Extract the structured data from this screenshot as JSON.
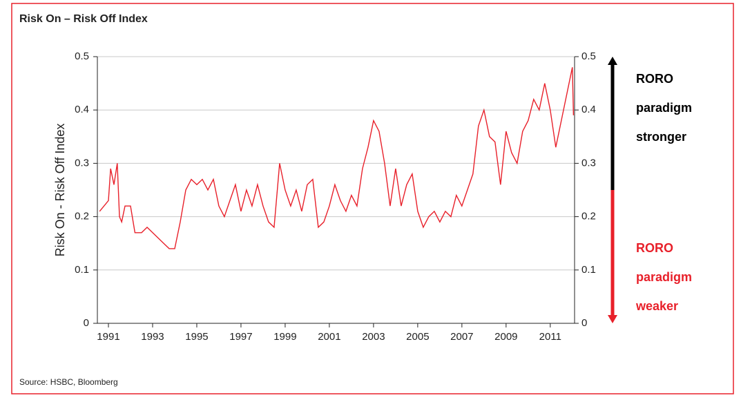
{
  "chart_data": {
    "type": "line",
    "title": "Risk On – Risk Off Index",
    "y_label": "Risk On - Risk Off Index",
    "source": "Source: HSBC, Bloomberg",
    "color": "#e8202a",
    "grid": true,
    "xlim": [
      1990.5,
      2012.1
    ],
    "xticks": [
      1991,
      1993,
      1995,
      1997,
      1999,
      2001,
      2003,
      2005,
      2007,
      2009,
      2011
    ],
    "ylim": [
      0,
      0.5
    ],
    "yticks": [
      0,
      0.1,
      0.2,
      0.3,
      0.4,
      0.5
    ],
    "y2lim": [
      0,
      0.5
    ],
    "y2ticks": [
      0,
      0.1,
      0.2,
      0.3,
      0.4,
      0.5
    ],
    "annotations": [
      {
        "text": [
          "RORO",
          "paradigm",
          "stronger"
        ],
        "color": "#000000"
      },
      {
        "text": [
          "RORO",
          "paradigm",
          "weaker"
        ],
        "color": "#e8202a"
      }
    ],
    "x": [
      1990.6,
      1990.8,
      1991.0,
      1991.1,
      1991.25,
      1991.4,
      1991.5,
      1991.6,
      1991.75,
      1992.0,
      1992.2,
      1992.5,
      1992.75,
      1993.0,
      1993.25,
      1993.5,
      1993.75,
      1994.0,
      1994.25,
      1994.5,
      1994.75,
      1995.0,
      1995.25,
      1995.5,
      1995.75,
      1996.0,
      1996.25,
      1996.5,
      1996.75,
      1997.0,
      1997.25,
      1997.5,
      1997.75,
      1998.0,
      1998.25,
      1998.5,
      1998.75,
      1999.0,
      1999.25,
      1999.5,
      1999.75,
      2000.0,
      2000.25,
      2000.5,
      2000.75,
      2001.0,
      2001.25,
      2001.5,
      2001.75,
      2002.0,
      2002.25,
      2002.5,
      2002.75,
      2003.0,
      2003.25,
      2003.5,
      2003.75,
      2004.0,
      2004.25,
      2004.5,
      2004.75,
      2005.0,
      2005.25,
      2005.5,
      2005.75,
      2006.0,
      2006.25,
      2006.5,
      2006.75,
      2007.0,
      2007.25,
      2007.5,
      2007.75,
      2008.0,
      2008.25,
      2008.5,
      2008.75,
      2009.0,
      2009.25,
      2009.5,
      2009.75,
      2010.0,
      2010.25,
      2010.5,
      2010.75,
      2011.0,
      2011.25,
      2011.5,
      2011.75,
      2012.0,
      2012.05
    ],
    "values": [
      0.21,
      0.22,
      0.23,
      0.29,
      0.26,
      0.3,
      0.2,
      0.19,
      0.22,
      0.22,
      0.17,
      0.17,
      0.18,
      0.17,
      0.16,
      0.15,
      0.14,
      0.14,
      0.19,
      0.25,
      0.27,
      0.26,
      0.27,
      0.25,
      0.27,
      0.22,
      0.2,
      0.23,
      0.26,
      0.21,
      0.25,
      0.22,
      0.26,
      0.22,
      0.19,
      0.18,
      0.3,
      0.25,
      0.22,
      0.25,
      0.21,
      0.26,
      0.27,
      0.18,
      0.19,
      0.22,
      0.26,
      0.23,
      0.21,
      0.24,
      0.22,
      0.29,
      0.33,
      0.38,
      0.36,
      0.3,
      0.22,
      0.29,
      0.22,
      0.26,
      0.28,
      0.21,
      0.18,
      0.2,
      0.21,
      0.19,
      0.21,
      0.2,
      0.24,
      0.22,
      0.25,
      0.28,
      0.37,
      0.4,
      0.35,
      0.34,
      0.26,
      0.36,
      0.32,
      0.3,
      0.36,
      0.38,
      0.42,
      0.4,
      0.45,
      0.4,
      0.33,
      0.38,
      0.43,
      0.48,
      0.39
    ]
  }
}
